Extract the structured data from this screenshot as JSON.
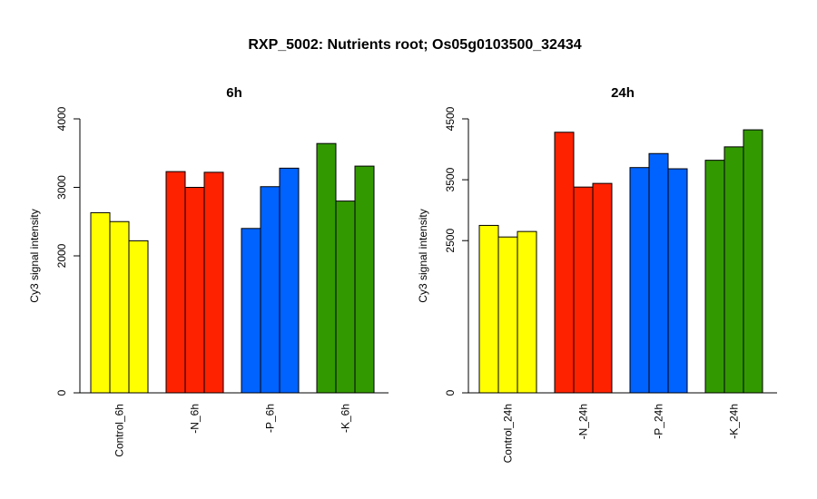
{
  "title": "RXP_5002: Nutrients root; Os05g0103500_32434",
  "chart_data": [
    {
      "type": "bar",
      "title": "6h",
      "ylabel": "Cy3 signal intensity",
      "ylim": [
        0,
        4000
      ],
      "yticks": [
        0,
        2000,
        3000,
        4000
      ],
      "groups": [
        {
          "label": "Control_6h",
          "color": "#ffff00",
          "values": [
            2630,
            2500,
            2220
          ]
        },
        {
          "label": "-N_6h",
          "color": "#ff2200",
          "values": [
            3230,
            3000,
            3220
          ]
        },
        {
          "label": "-P_6h",
          "color": "#0062ff",
          "values": [
            2400,
            3010,
            3280
          ]
        },
        {
          "label": "-K_6h",
          "color": "#339900",
          "values": [
            3640,
            2800,
            3310
          ]
        }
      ]
    },
    {
      "type": "bar",
      "title": "24h",
      "ylabel": "Cy3 signal intensity",
      "ylim": [
        0,
        4500
      ],
      "yticks": [
        0,
        2500,
        3500,
        4500
      ],
      "groups": [
        {
          "label": "Control_24h",
          "color": "#ffff00",
          "values": [
            2750,
            2560,
            2650
          ]
        },
        {
          "label": "-N_24h",
          "color": "#ff2200",
          "values": [
            4280,
            3380,
            3440
          ]
        },
        {
          "label": "-P_24h",
          "color": "#0062ff",
          "values": [
            3700,
            3930,
            3680
          ]
        },
        {
          "label": "-K_24h",
          "color": "#339900",
          "values": [
            3820,
            4040,
            4320
          ]
        }
      ]
    }
  ]
}
